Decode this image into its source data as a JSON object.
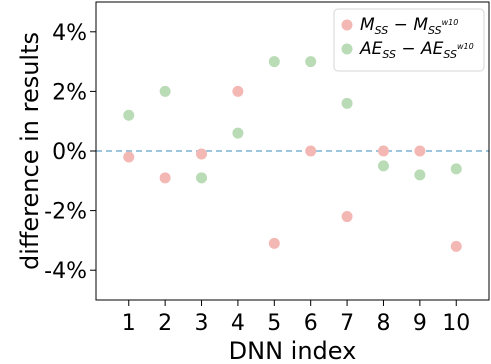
{
  "chart_data": {
    "type": "scatter",
    "xlabel": "DNN index",
    "ylabel": "difference in results",
    "x": [
      1,
      2,
      3,
      4,
      5,
      6,
      7,
      8,
      9,
      10
    ],
    "x_tick_labels": [
      "1",
      "2",
      "3",
      "4",
      "5",
      "6",
      "7",
      "8",
      "9",
      "10"
    ],
    "xlim": [
      0.1,
      10.9
    ],
    "ylim": [
      -5,
      5
    ],
    "y_ticks": [
      -4,
      -2,
      0,
      2,
      4
    ],
    "y_tick_labels": [
      "-4%",
      "-2%",
      "0%",
      "2%",
      "4%"
    ],
    "y_unit": "%",
    "reference_line": {
      "y": 0,
      "style": "dashed",
      "color": "#7fb2d4"
    },
    "grid": false,
    "legend_position": "top-right",
    "series": [
      {
        "name": "M_SS − M_SS^w10",
        "legend_main": "M",
        "legend_main_sub": "SS",
        "legend_minus": " − ",
        "legend_second": "M",
        "legend_second_sub": "SS",
        "legend_second_sup": "w10",
        "color": "#f4b8b4",
        "values": [
          -0.2,
          -0.9,
          -0.1,
          2.0,
          -3.1,
          0.0,
          -2.2,
          0.0,
          0.0,
          -3.2
        ]
      },
      {
        "name": "AE_SS − AE_SS^w10",
        "legend_main": "AE",
        "legend_main_sub": "SS",
        "legend_minus": " − ",
        "legend_second": "AE",
        "legend_second_sub": "SS",
        "legend_second_sup": "w10",
        "color": "#b9dbb5",
        "values": [
          1.2,
          2.0,
          -0.9,
          0.6,
          3.0,
          3.0,
          1.6,
          -0.5,
          -0.8,
          -0.6
        ]
      }
    ]
  }
}
